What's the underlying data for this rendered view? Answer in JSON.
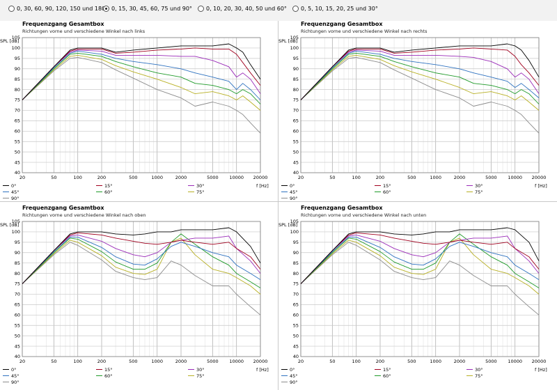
{
  "radio_options": [
    {
      "label": "0, 30, 60, 90, 120, 150 und 180°",
      "selected": false
    },
    {
      "label": "0, 15, 30, 45, 60, 75 und 90°",
      "selected": true
    },
    {
      "label": "0, 10, 20, 30, 40, 50 und 60°",
      "selected": false
    },
    {
      "label": "0, 5, 10, 15, 20, 25 und 30°",
      "selected": false
    }
  ],
  "axis_label_y": "SPL [dB]",
  "axis_label_x": "f [Hz]",
  "y_ticks": [
    40,
    45,
    50,
    55,
    60,
    65,
    70,
    75,
    80,
    85,
    90,
    95,
    100,
    105
  ],
  "x_ticks": [
    "20",
    "50",
    "100",
    "200",
    "500",
    "1000",
    "2000",
    "5000",
    "10000",
    "20000"
  ],
  "legend": [
    {
      "label": "0°",
      "color": "#000000"
    },
    {
      "label": "15°",
      "color": "#a0001e"
    },
    {
      "label": "30°",
      "color": "#9a2ab8"
    },
    {
      "label": "45°",
      "color": "#2e72c0"
    },
    {
      "label": "60°",
      "color": "#1e9a28"
    },
    {
      "label": "75°",
      "color": "#b8b024"
    },
    {
      "label": "90°",
      "color": "#8c8c8c"
    }
  ],
  "panels": [
    {
      "title": "Frequenzgang Gesamtbox",
      "subtitle": "Richtungen vorne und verschiedene Winkel nach links"
    },
    {
      "title": "Frequenzgang Gesamtbox",
      "subtitle": "Richtungen vorne und verschiedene Winkel nach rechts"
    },
    {
      "title": "Frequenzgang Gesamtbox",
      "subtitle": "Richtungen vorne und verschiedene Winkel nach oben"
    },
    {
      "title": "Frequenzgang Gesamtbox",
      "subtitle": "Richtungen vorne und verschiedene Winkel nach unten"
    }
  ],
  "chart_data": [
    {
      "type": "line",
      "title": "Frequenzgang Gesamtbox",
      "subtitle": "Richtungen vorne und verschiedene Winkel nach links",
      "xlabel": "f [Hz]",
      "ylabel": "SPL [dB]",
      "xscale": "log",
      "xlim": [
        20,
        20000
      ],
      "ylim": [
        40,
        105
      ],
      "x": [
        20,
        50,
        80,
        100,
        200,
        300,
        500,
        1000,
        2000,
        3000,
        5000,
        8000,
        10000,
        12000,
        15000,
        20000
      ],
      "series": [
        {
          "name": "0°",
          "values": [
            75,
            91,
            99,
            100,
            100,
            98,
            99,
            100,
            101,
            101,
            101,
            102,
            100,
            98,
            92,
            85
          ]
        },
        {
          "name": "15°",
          "values": [
            75,
            91,
            98.5,
            99.5,
            99.5,
            97.5,
            98,
            99,
            99.5,
            100,
            99.5,
            99.5,
            97,
            93,
            88,
            82
          ]
        },
        {
          "name": "30°",
          "values": [
            75,
            91,
            98,
            99,
            98.5,
            96.5,
            96.5,
            96.5,
            96,
            96,
            94,
            91,
            86,
            88,
            85,
            78
          ]
        },
        {
          "name": "45°",
          "values": [
            75,
            90.5,
            97.5,
            98.5,
            97,
            95,
            93.5,
            92,
            90,
            88,
            86,
            84,
            80,
            83,
            80,
            75
          ]
        },
        {
          "name": "60°",
          "values": [
            75,
            90,
            97,
            97.5,
            96,
            93.5,
            91,
            88,
            86,
            83,
            82,
            80,
            78,
            80,
            78,
            73
          ]
        },
        {
          "name": "75°",
          "values": [
            75,
            89.5,
            96,
            96.5,
            94.5,
            91.5,
            88.5,
            85,
            81,
            78,
            79,
            77,
            75,
            77,
            74,
            70
          ]
        },
        {
          "name": "90°",
          "values": [
            75,
            89,
            95,
            95.5,
            93,
            89.5,
            85.5,
            80,
            76,
            72,
            74,
            72,
            70,
            68,
            64,
            59
          ]
        }
      ]
    },
    {
      "type": "line",
      "title": "Frequenzgang Gesamtbox",
      "subtitle": "Richtungen vorne und verschiedene Winkel nach rechts",
      "xlabel": "f [Hz]",
      "ylabel": "SPL [dB]",
      "xscale": "log",
      "xlim": [
        20,
        20000
      ],
      "ylim": [
        40,
        105
      ],
      "x": [
        20,
        50,
        80,
        100,
        200,
        300,
        500,
        1000,
        2000,
        3000,
        5000,
        8000,
        10000,
        12000,
        15000,
        20000
      ],
      "series": [
        {
          "name": "0°",
          "values": [
            75,
            91,
            99,
            100,
            100,
            98,
            99,
            100,
            101,
            101,
            101,
            102,
            101,
            99,
            94,
            86
          ]
        },
        {
          "name": "15°",
          "values": [
            75,
            91,
            98.5,
            99.5,
            99.5,
            97.5,
            98,
            99,
            99.5,
            100,
            99.5,
            99,
            96,
            92,
            88,
            82
          ]
        },
        {
          "name": "30°",
          "values": [
            75,
            91,
            98,
            99,
            98.5,
            96.5,
            96.5,
            96.5,
            96,
            95.5,
            93.5,
            90,
            86,
            88,
            85,
            78
          ]
        },
        {
          "name": "45°",
          "values": [
            75,
            90.5,
            97.5,
            98.5,
            97,
            95,
            93.5,
            92,
            90,
            88,
            86,
            84,
            81,
            83,
            80,
            76
          ]
        },
        {
          "name": "60°",
          "values": [
            75,
            90,
            97,
            97.5,
            96,
            93.5,
            91,
            88,
            86,
            83,
            82,
            80,
            78,
            80,
            78,
            73
          ]
        },
        {
          "name": "75°",
          "values": [
            75,
            89.5,
            96,
            96.5,
            94.5,
            91.5,
            88.5,
            85,
            81,
            78,
            79,
            77,
            75,
            77,
            74,
            70
          ]
        },
        {
          "name": "90°",
          "values": [
            75,
            89,
            95,
            95.5,
            93,
            89.5,
            85.5,
            80,
            76,
            72,
            74,
            72,
            70,
            68,
            64,
            59
          ]
        }
      ]
    },
    {
      "type": "line",
      "title": "Frequenzgang Gesamtbox",
      "subtitle": "Richtungen vorne und verschiedene Winkel nach oben",
      "xlabel": "f [Hz]",
      "ylabel": "SPL [dB]",
      "xscale": "log",
      "xlim": [
        20,
        20000
      ],
      "ylim": [
        40,
        105
      ],
      "x": [
        20,
        50,
        80,
        100,
        200,
        300,
        500,
        700,
        1000,
        1500,
        2000,
        3000,
        5000,
        8000,
        10000,
        15000,
        20000
      ],
      "series": [
        {
          "name": "0°",
          "values": [
            75,
            91,
            99,
            100,
            100,
            99,
            98.5,
            99,
            100,
            100,
            101,
            101,
            101,
            102,
            100,
            93,
            85
          ]
        },
        {
          "name": "15°",
          "values": [
            75,
            91,
            98.5,
            99.5,
            98.5,
            97,
            95.5,
            94.5,
            94,
            95,
            96,
            95,
            94,
            95,
            92,
            88,
            82
          ]
        },
        {
          "name": "30°",
          "values": [
            75,
            91,
            98,
            98.5,
            95.5,
            92,
            89,
            88,
            90,
            95,
            96,
            97,
            97,
            98,
            92,
            86,
            80
          ]
        },
        {
          "name": "45°",
          "values": [
            75,
            90.5,
            97.5,
            97.5,
            92.5,
            88,
            84.5,
            84,
            87,
            93,
            95,
            93,
            90,
            88,
            84,
            80,
            77
          ]
        },
        {
          "name": "60°",
          "values": [
            75,
            90,
            97,
            96.5,
            90.5,
            85.5,
            82,
            82,
            85,
            95,
            99,
            94,
            88,
            84,
            80,
            76,
            73
          ]
        },
        {
          "name": "75°",
          "values": [
            75,
            89.5,
            96,
            95,
            88.5,
            83,
            80,
            79.5,
            82,
            95,
            97,
            89,
            82,
            80,
            78,
            74,
            70
          ]
        },
        {
          "name": "90°",
          "values": [
            75,
            89,
            95,
            93.5,
            86.5,
            81,
            78,
            77,
            78,
            86,
            84,
            79,
            74,
            74,
            70,
            64,
            60
          ]
        }
      ]
    },
    {
      "type": "line",
      "title": "Frequenzgang Gesamtbox",
      "subtitle": "Richtungen vorne und verschiedene Winkel nach unten",
      "xlabel": "f [Hz]",
      "ylabel": "SPL [dB]",
      "xscale": "log",
      "xlim": [
        20,
        20000
      ],
      "ylim": [
        40,
        105
      ],
      "x": [
        20,
        50,
        80,
        100,
        200,
        300,
        500,
        700,
        1000,
        1500,
        2000,
        3000,
        5000,
        8000,
        10000,
        15000,
        20000
      ],
      "series": [
        {
          "name": "0°",
          "values": [
            75,
            91,
            99,
            100,
            100,
            99,
            98.5,
            99,
            100,
            100,
            101,
            101,
            101,
            102,
            101,
            95,
            86
          ]
        },
        {
          "name": "15°",
          "values": [
            75,
            91,
            98.5,
            99.5,
            98.5,
            97,
            95.5,
            94.5,
            94,
            95,
            96,
            95,
            94,
            95,
            92,
            88,
            82
          ]
        },
        {
          "name": "30°",
          "values": [
            75,
            91,
            98,
            98.5,
            95.5,
            92,
            89,
            88,
            90,
            95,
            96,
            97,
            97,
            98,
            92,
            86,
            80
          ]
        },
        {
          "name": "45°",
          "values": [
            75,
            90.5,
            97.5,
            97.5,
            92.5,
            88,
            84.5,
            84,
            87,
            93,
            95,
            93,
            90,
            88,
            84,
            80,
            77
          ]
        },
        {
          "name": "60°",
          "values": [
            75,
            90,
            97,
            96.5,
            90.5,
            85.5,
            82,
            82,
            85,
            95,
            99,
            94,
            88,
            84,
            80,
            76,
            73
          ]
        },
        {
          "name": "75°",
          "values": [
            75,
            89.5,
            96,
            95,
            88.5,
            83,
            80,
            79.5,
            82,
            95,
            97,
            89,
            82,
            80,
            78,
            74,
            70
          ]
        },
        {
          "name": "90°",
          "values": [
            75,
            89,
            95,
            93.5,
            86.5,
            81,
            78,
            77,
            78,
            86,
            84,
            79,
            74,
            74,
            70,
            64,
            60
          ]
        }
      ]
    }
  ]
}
